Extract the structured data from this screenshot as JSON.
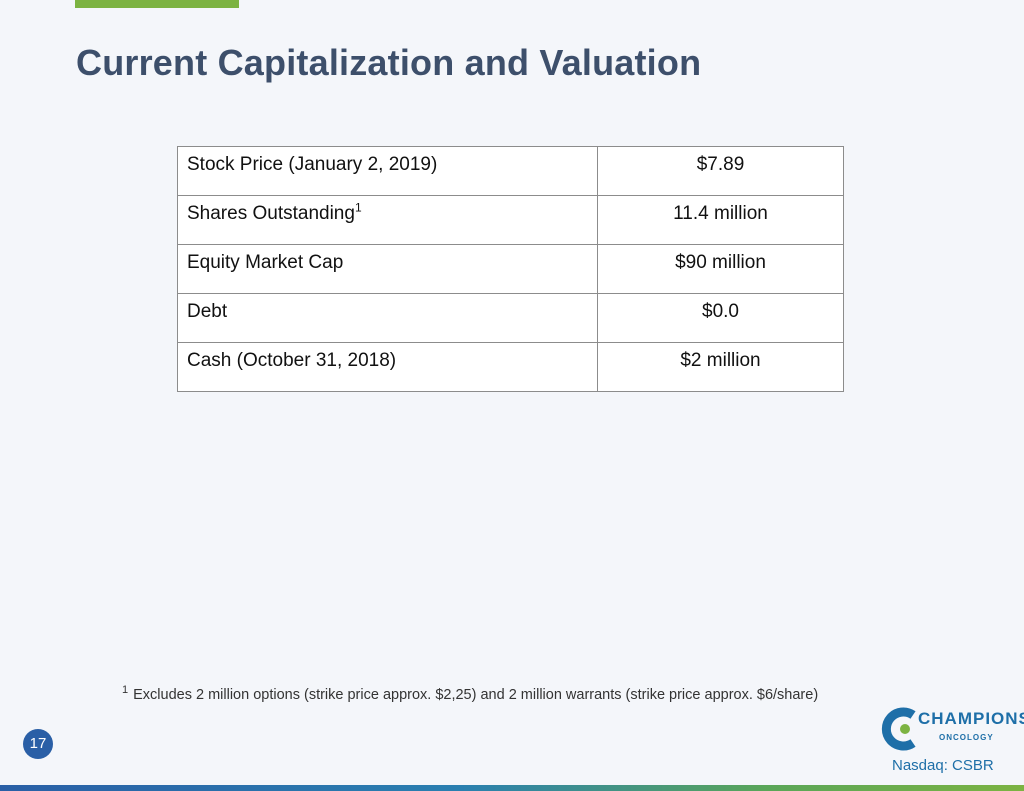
{
  "slide": {
    "title": "Current Capitalization and Valuation",
    "page_number": "17",
    "ticker": "Nasdaq: CSBR"
  },
  "table": {
    "rows": [
      {
        "label": "Stock Price (January 2, 2019)",
        "footnote": "",
        "value": "$7.89"
      },
      {
        "label": "Shares Outstanding",
        "footnote": "1",
        "value": "11.4 million"
      },
      {
        "label": "Equity Market Cap",
        "footnote": "",
        "value": "$90 million"
      },
      {
        "label": "Debt",
        "footnote": "",
        "value": "$0.0"
      },
      {
        "label": "Cash (October 31, 2018)",
        "footnote": "",
        "value": "$2 million"
      }
    ]
  },
  "footnote": {
    "marker": "1",
    "text": "Excludes 2 million options (strike price approx. $2,25) and 2 million warrants (strike price approx. $6/share)"
  },
  "logo": {
    "name": "CHAMPIONS",
    "subtitle": "ONCOLOGY",
    "primary_color": "#1e6fa8",
    "accent_color": "#7cb342"
  }
}
